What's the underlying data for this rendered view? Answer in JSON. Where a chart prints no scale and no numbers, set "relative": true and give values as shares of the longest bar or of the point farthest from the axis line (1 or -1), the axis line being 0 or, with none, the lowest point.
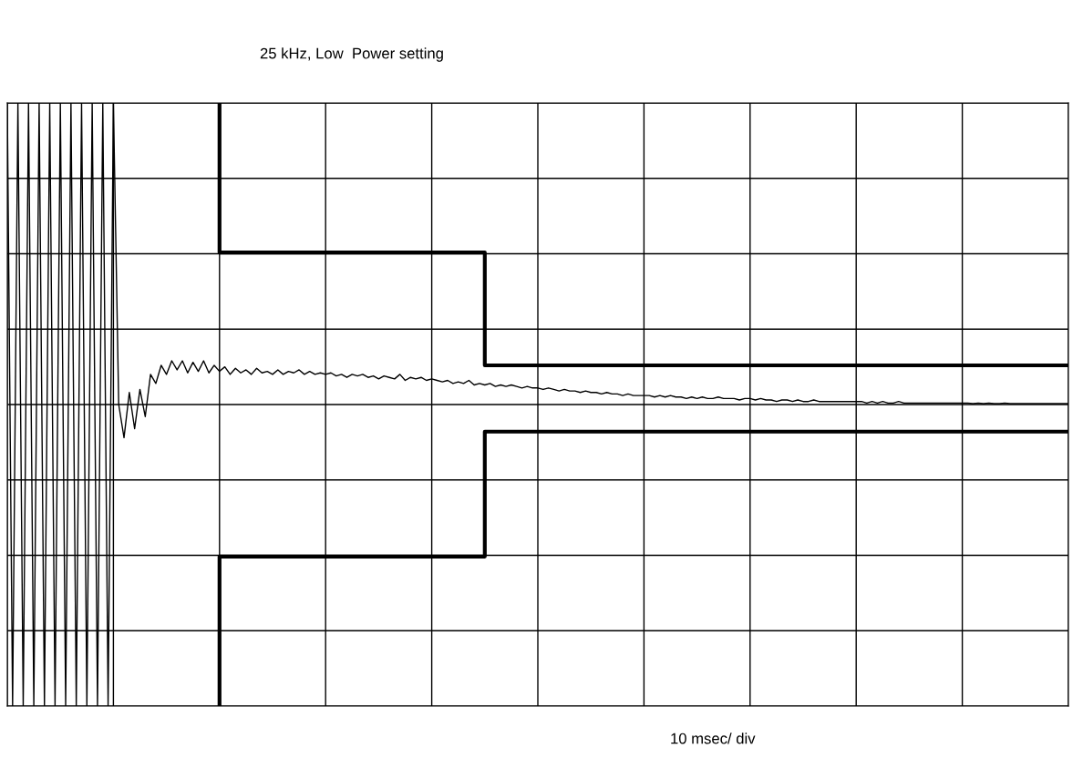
{
  "chart_data": {
    "type": "line",
    "title": "25 kHz, Low  Power setting",
    "annotations": [
      "10 msec/ div"
    ],
    "relative": true,
    "grid": true,
    "categories": [
      null,
      null,
      null,
      null,
      null,
      null,
      null,
      null,
      null,
      null,
      null,
      null,
      null,
      null,
      null,
      null,
      null,
      null,
      null,
      null,
      null,
      null,
      null,
      null,
      null,
      null,
      null,
      null,
      null,
      null,
      null,
      null,
      null,
      null,
      null,
      null,
      null,
      null,
      null,
      null,
      null,
      null,
      null,
      null,
      null,
      null,
      null,
      null,
      null,
      null,
      null,
      null,
      null,
      null,
      null,
      null,
      null,
      null,
      null,
      null,
      null,
      null,
      null,
      null,
      null,
      null,
      null,
      null,
      null,
      null,
      null,
      null,
      null,
      null,
      null,
      null,
      null,
      null,
      null,
      null,
      null,
      null,
      null,
      null,
      null,
      null,
      null,
      null,
      null,
      null,
      null,
      null,
      null,
      null,
      null,
      null,
      null,
      null,
      null,
      null,
      null,
      null,
      null,
      null,
      null,
      null,
      null,
      null,
      null,
      null,
      null,
      null,
      null,
      null,
      null,
      null,
      null,
      null,
      null,
      null,
      null,
      null,
      null,
      null,
      null,
      null,
      null,
      null,
      null,
      null,
      null,
      null,
      null,
      null,
      null,
      null,
      null,
      null,
      null,
      null,
      null,
      null,
      null,
      null,
      null,
      null,
      null,
      null,
      null,
      null,
      null,
      null,
      null,
      null,
      null,
      null,
      null,
      null,
      null,
      null,
      null,
      null,
      null,
      null,
      null,
      null,
      null,
      null,
      null,
      null,
      null,
      null,
      null,
      null,
      null,
      null,
      null,
      null,
      null,
      null,
      null,
      null,
      null,
      null,
      null,
      null,
      null,
      null,
      null,
      null,
      null,
      null,
      null,
      null,
      null,
      null,
      null,
      null,
      null,
      null,
      null
    ],
    "series": [
      {
        "color": "#000000",
        "values": [
          1,
          -1,
          1,
          -1,
          1,
          -1,
          1,
          -1,
          1,
          -1,
          1,
          -1,
          1,
          -1,
          1,
          -1,
          1,
          -1,
          1,
          -1,
          1,
          0,
          -0.11,
          0.04,
          -0.08,
          0.05,
          -0.04,
          0.1,
          0.07,
          0.13,
          0.1,
          0.145,
          0.115,
          0.145,
          0.105,
          0.14,
          0.11,
          0.145,
          0.105,
          0.13,
          0.11,
          0.125,
          0.1,
          0.12,
          0.105,
          0.115,
          0.1,
          0.12,
          0.105,
          0.11,
          0.1,
          0.115,
          0.1,
          0.11,
          0.105,
          0.115,
          0.1,
          0.11,
          0.1,
          0.105,
          0.1,
          0.105,
          0.095,
          0.1,
          0.09,
          0.1,
          0.095,
          0.1,
          0.09,
          0.095,
          0.085,
          0.095,
          0.09,
          0.085,
          0.1,
          0.08,
          0.09,
          0.085,
          0.09,
          0.08,
          0.085,
          0.08,
          0.075,
          0.08,
          0.07,
          0.075,
          0.07,
          0.08,
          0.065,
          0.07,
          0.065,
          0.07,
          0.06,
          0.065,
          0.06,
          0.065,
          0.06,
          0.055,
          0.06,
          0.055,
          0.055,
          0.05,
          0.055,
          0.05,
          0.045,
          0.05,
          0.045,
          0.045,
          0.04,
          0.045,
          0.04,
          0.04,
          0.035,
          0.04,
          0.035,
          0.035,
          0.03,
          0.035,
          0.03,
          0.03,
          0.03,
          0.03,
          0.025,
          0.03,
          0.025,
          0.03,
          0.025,
          0.025,
          0.02,
          0.025,
          0.02,
          0.025,
          0.02,
          0.02,
          0.025,
          0.02,
          0.02,
          0.02,
          0.015,
          0.02,
          0.02,
          0.015,
          0.02,
          0.015,
          0.015,
          0.01,
          0.015,
          0.015,
          0.01,
          0.015,
          0.01,
          0.01,
          0.015,
          0.01,
          0.01,
          0.01,
          0.01,
          0.01,
          0.01,
          0.01,
          0.01,
          0.01,
          0.005,
          0.01,
          0.005,
          0.01,
          0.005,
          0.005,
          0.01,
          0.005,
          0.005,
          0.005,
          0.005,
          0.005,
          0.005,
          0.005,
          0.005,
          0.005,
          0.005,
          0.005,
          0.005,
          0.005,
          0.003,
          0.005,
          0.003,
          0.005,
          0.003,
          0.003,
          0.005,
          0.003,
          0.003,
          0.003,
          0.003,
          0.003,
          0.003,
          0.003,
          0.003,
          0.003,
          0.003,
          0.003,
          0.003
        ]
      },
      {
        "type": "step",
        "color": "#000000",
        "values": [
          null,
          null,
          null,
          null,
          null,
          null,
          null,
          null,
          null,
          null,
          null,
          null,
          null,
          null,
          null,
          null,
          null,
          null,
          null,
          null,
          null,
          null,
          null,
          null,
          null,
          null,
          null,
          null,
          null,
          null,
          null,
          null,
          null,
          null,
          null,
          null,
          null,
          null,
          null,
          null,
          1,
          0.504,
          0.504,
          0.504,
          0.504,
          0.504,
          0.504,
          0.504,
          0.504,
          0.504,
          0.504,
          0.504,
          0.504,
          0.504,
          0.504,
          0.504,
          0.504,
          0.504,
          0.504,
          0.504,
          0.504,
          0.504,
          0.504,
          0.504,
          0.504,
          0.504,
          0.504,
          0.504,
          0.504,
          0.504,
          0.504,
          0.504,
          0.504,
          0.504,
          0.504,
          0.504,
          0.504,
          0.504,
          0.504,
          0.504,
          0.504,
          0.504,
          0.504,
          0.504,
          0.504,
          0.504,
          0.504,
          0.504,
          0.504,
          0.504,
          0.504,
          0.13,
          0.13,
          0.13,
          0.13,
          0.13,
          0.13,
          0.13,
          0.13,
          0.13,
          0.13,
          0.13,
          0.13,
          0.13,
          0.13,
          0.13,
          0.13,
          0.13,
          0.13,
          0.13,
          0.13,
          0.13,
          0.13,
          0.13,
          0.13,
          0.13,
          0.13,
          0.13,
          0.13,
          0.13,
          0.13,
          0.13,
          0.13,
          0.13,
          0.13,
          0.13,
          0.13,
          0.13,
          0.13,
          0.13,
          0.13,
          0.13,
          0.13,
          0.13,
          0.13,
          0.13,
          0.13,
          0.13,
          0.13,
          0.13,
          0.13,
          0.13,
          0.13,
          0.13,
          0.13,
          0.13,
          0.13,
          0.13,
          0.13,
          0.13,
          0.13,
          0.13,
          0.13,
          0.13,
          0.13,
          0.13,
          0.13,
          0.13,
          0.13,
          0.13,
          0.13,
          0.13,
          0.13,
          0.13,
          0.13,
          0.13,
          0.13,
          0.13,
          0.13,
          0.13,
          0.13,
          0.13,
          0.13,
          0.13,
          0.13,
          0.13,
          0.13,
          0.13,
          0.13,
          0.13,
          0.13,
          0.13,
          0.13,
          0.13,
          0.13,
          0.13,
          0.13,
          0.13,
          0.13,
          0.13,
          0.13,
          0.13,
          0.13,
          0.13,
          0.13,
          0.13,
          0.13,
          0.13,
          0.13,
          0.13,
          0.13
        ]
      },
      {
        "type": "step",
        "color": "#000000",
        "values": [
          null,
          null,
          null,
          null,
          null,
          null,
          null,
          null,
          null,
          null,
          null,
          null,
          null,
          null,
          null,
          null,
          null,
          null,
          null,
          null,
          null,
          null,
          null,
          null,
          null,
          null,
          null,
          null,
          null,
          null,
          null,
          null,
          null,
          null,
          null,
          null,
          null,
          null,
          null,
          null,
          -1,
          -0.504,
          -0.504,
          -0.504,
          -0.504,
          -0.504,
          -0.504,
          -0.504,
          -0.504,
          -0.504,
          -0.504,
          -0.504,
          -0.504,
          -0.504,
          -0.504,
          -0.504,
          -0.504,
          -0.504,
          -0.504,
          -0.504,
          -0.504,
          -0.504,
          -0.504,
          -0.504,
          -0.504,
          -0.504,
          -0.504,
          -0.504,
          -0.504,
          -0.504,
          -0.504,
          -0.504,
          -0.504,
          -0.504,
          -0.504,
          -0.504,
          -0.504,
          -0.504,
          -0.504,
          -0.504,
          -0.504,
          -0.504,
          -0.504,
          -0.504,
          -0.504,
          -0.504,
          -0.504,
          -0.504,
          -0.504,
          -0.504,
          -0.504,
          -0.09,
          -0.09,
          -0.09,
          -0.09,
          -0.09,
          -0.09,
          -0.09,
          -0.09,
          -0.09,
          -0.09,
          -0.09,
          -0.09,
          -0.09,
          -0.09,
          -0.09,
          -0.09,
          -0.09,
          -0.09,
          -0.09,
          -0.09,
          -0.09,
          -0.09,
          -0.09,
          -0.09,
          -0.09,
          -0.09,
          -0.09,
          -0.09,
          -0.09,
          -0.09,
          -0.09,
          -0.09,
          -0.09,
          -0.09,
          -0.09,
          -0.09,
          -0.09,
          -0.09,
          -0.09,
          -0.09,
          -0.09,
          -0.09,
          -0.09,
          -0.09,
          -0.09,
          -0.09,
          -0.09,
          -0.09,
          -0.09,
          -0.09,
          -0.09,
          -0.09,
          -0.09,
          -0.09,
          -0.09,
          -0.09,
          -0.09,
          -0.09,
          -0.09,
          -0.09,
          -0.09,
          -0.09,
          -0.09,
          -0.09,
          -0.09,
          -0.09,
          -0.09,
          -0.09,
          -0.09,
          -0.09,
          -0.09,
          -0.09,
          -0.09,
          -0.09,
          -0.09,
          -0.09,
          -0.09,
          -0.09,
          -0.09,
          -0.09,
          -0.09,
          -0.09,
          -0.09,
          -0.09,
          -0.09,
          -0.09,
          -0.09,
          -0.09,
          -0.09,
          -0.09,
          -0.09,
          -0.09,
          -0.09,
          -0.09,
          -0.09,
          -0.09,
          -0.09,
          -0.09,
          -0.09,
          -0.09,
          -0.09,
          -0.09,
          -0.09,
          -0.09,
          -0.09,
          -0.09,
          -0.09,
          -0.09,
          -0.09,
          -0.09
        ]
      }
    ]
  }
}
